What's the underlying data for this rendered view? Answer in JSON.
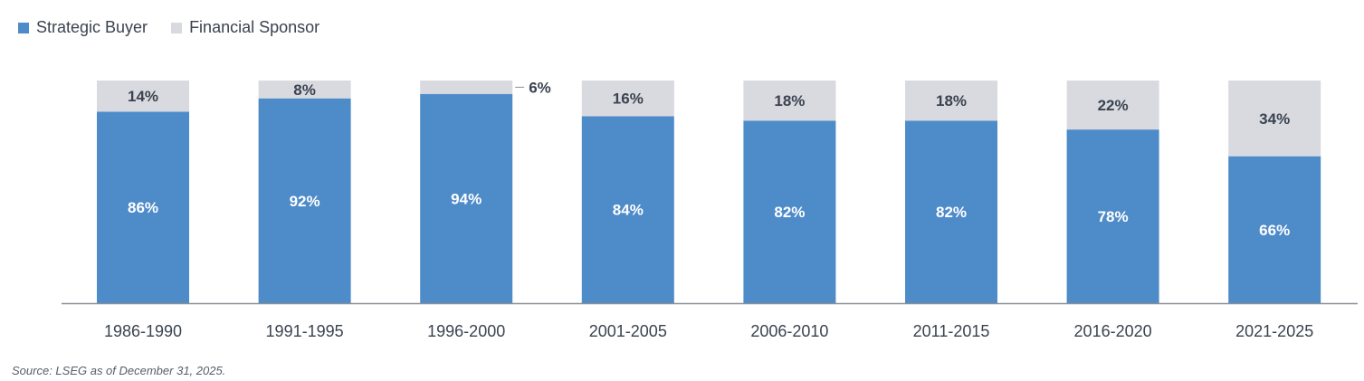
{
  "legend": {
    "strategic_label": "Strategic Buyer",
    "financial_label": "Financial Sponsor"
  },
  "colors": {
    "strategic": "#4e8bc9",
    "financial": "#d9dadf",
    "axis": "#8a8f96",
    "label_dark": "#3b4350",
    "label_light": "#ffffff"
  },
  "source": "Source: LSEG as of December 31, 2025.",
  "chart_data": {
    "type": "bar",
    "stacked": true,
    "categories": [
      "1986-1990",
      "1991-1995",
      "1996-2000",
      "2001-2005",
      "2006-2010",
      "2011-2015",
      "2016-2020",
      "2021-2025"
    ],
    "series": [
      {
        "name": "Strategic Buyer",
        "values": [
          86,
          92,
          94,
          84,
          82,
          82,
          78,
          66
        ],
        "labels": [
          "86%",
          "92%",
          "94%",
          "84%",
          "82%",
          "82%",
          "78%",
          "66%"
        ]
      },
      {
        "name": "Financial Sponsor",
        "values": [
          14,
          8,
          6,
          16,
          18,
          18,
          22,
          34
        ],
        "labels": [
          "14%",
          "8%",
          "6%",
          "16%",
          "18%",
          "18%",
          "22%",
          "34%"
        ]
      }
    ],
    "ylim": [
      0,
      100
    ],
    "grid": false,
    "legend_position": "top-left",
    "xlabel": "",
    "ylabel": ""
  }
}
